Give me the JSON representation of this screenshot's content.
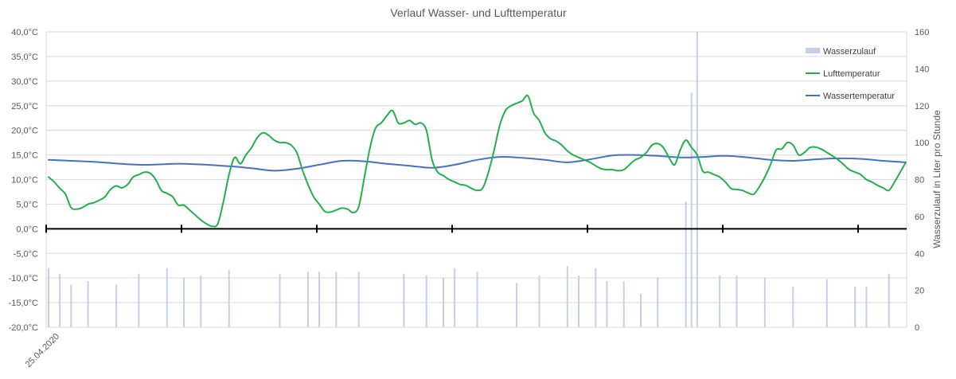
{
  "chart_data": {
    "type": "line",
    "title": "Verlauf Wasser- und Lufttemperatur",
    "x_start_label": "25.04.2020",
    "x_count": 152,
    "y_left": {
      "range": [
        -20,
        40
      ],
      "ticks": [
        -20,
        -15,
        -10,
        -5,
        0,
        5,
        10,
        15,
        20,
        25,
        30,
        35,
        40
      ],
      "tick_labels": [
        "-20,0°C",
        "-15,0°C",
        "-10,0°C",
        "-5,0°C",
        "0,0°C",
        "5,0°C",
        "10,0°C",
        "15,0°C",
        "20,0°C",
        "25,0°C",
        "30,0°C",
        "35,0°C",
        "40,0°C"
      ]
    },
    "y_right": {
      "label": "Wasserzulauf in Liter pro Stunde",
      "range": [
        0,
        160
      ],
      "ticks": [
        0,
        20,
        40,
        60,
        80,
        100,
        120,
        140,
        160
      ],
      "tick_labels": [
        "0",
        "20",
        "40",
        "60",
        "80",
        "100",
        "120",
        "140",
        "160"
      ]
    },
    "grid": true,
    "legend_position": "top-right",
    "colors": {
      "Wasserzulauf": "#c5d0e3",
      "Lufttemperatur": "#21b14b",
      "Wassertemperatur": "#4472c4",
      "zero_axis": "#000000"
    },
    "series": [
      {
        "name": "Wasserzulauf",
        "type": "bar",
        "axis": "right",
        "points": [
          [
            0,
            32
          ],
          [
            2,
            29
          ],
          [
            4,
            23
          ],
          [
            7,
            25
          ],
          [
            12,
            23
          ],
          [
            16,
            29
          ],
          [
            21,
            32
          ],
          [
            24,
            27
          ],
          [
            27,
            28
          ],
          [
            32,
            31
          ],
          [
            41,
            29
          ],
          [
            46,
            30
          ],
          [
            48,
            30
          ],
          [
            51,
            30
          ],
          [
            55,
            30
          ],
          [
            63,
            29
          ],
          [
            67,
            28
          ],
          [
            70,
            27
          ],
          [
            72,
            32
          ],
          [
            76,
            30
          ],
          [
            83,
            24
          ],
          [
            87,
            28
          ],
          [
            92,
            33
          ],
          [
            94,
            28
          ],
          [
            97,
            32
          ],
          [
            99,
            25
          ],
          [
            102,
            25
          ],
          [
            105,
            18
          ],
          [
            108,
            27
          ],
          [
            113,
            68
          ],
          [
            114,
            127
          ],
          [
            115,
            160
          ],
          [
            119,
            28
          ],
          [
            122,
            28
          ],
          [
            127,
            27
          ],
          [
            132,
            22
          ],
          [
            138,
            26
          ],
          [
            143,
            22
          ],
          [
            145,
            22
          ],
          [
            149,
            29
          ]
        ]
      },
      {
        "name": "Lufttemperatur",
        "type": "line",
        "axis": "left",
        "points": [
          [
            0,
            10.5
          ],
          [
            1,
            9.5
          ],
          [
            2,
            8.2
          ],
          [
            3,
            7.0
          ],
          [
            4,
            4.3
          ],
          [
            5,
            4.0
          ],
          [
            6,
            4.3
          ],
          [
            7,
            5.0
          ],
          [
            8,
            5.3
          ],
          [
            9,
            5.8
          ],
          [
            10,
            6.5
          ],
          [
            11,
            8.0
          ],
          [
            12,
            8.7
          ],
          [
            13,
            8.3
          ],
          [
            14,
            9.0
          ],
          [
            15,
            10.5
          ],
          [
            16,
            11.0
          ],
          [
            17,
            11.5
          ],
          [
            18,
            11.3
          ],
          [
            19,
            10.0
          ],
          [
            20,
            7.8
          ],
          [
            21,
            7.2
          ],
          [
            22,
            6.5
          ],
          [
            23,
            4.8
          ],
          [
            24,
            4.8
          ],
          [
            25,
            3.8
          ],
          [
            26,
            2.8
          ],
          [
            27,
            1.8
          ],
          [
            28,
            1.0
          ],
          [
            29,
            0.5
          ],
          [
            30,
            1.0
          ],
          [
            31,
            5.5
          ],
          [
            32,
            11.0
          ],
          [
            33,
            14.5
          ],
          [
            34,
            13.2
          ],
          [
            35,
            15.0
          ],
          [
            36,
            16.5
          ],
          [
            37,
            18.5
          ],
          [
            38,
            19.5
          ],
          [
            39,
            19.0
          ],
          [
            40,
            18.0
          ],
          [
            41,
            17.5
          ],
          [
            42,
            17.5
          ],
          [
            43,
            17.0
          ],
          [
            44,
            15.5
          ],
          [
            45,
            12.0
          ],
          [
            46,
            9.0
          ],
          [
            47,
            6.5
          ],
          [
            48,
            5.0
          ],
          [
            49,
            3.5
          ],
          [
            50,
            3.4
          ],
          [
            51,
            3.8
          ],
          [
            52,
            4.2
          ],
          [
            53,
            4.0
          ],
          [
            54,
            3.3
          ],
          [
            55,
            4.5
          ],
          [
            56,
            10.5
          ],
          [
            57,
            16.5
          ],
          [
            58,
            20.5
          ],
          [
            59,
            21.5
          ],
          [
            60,
            23.0
          ],
          [
            61,
            24.0
          ],
          [
            62,
            21.5
          ],
          [
            63,
            21.5
          ],
          [
            64,
            22.0
          ],
          [
            65,
            21.2
          ],
          [
            66,
            21.5
          ],
          [
            67,
            20.0
          ],
          [
            68,
            14.0
          ],
          [
            69,
            11.5
          ],
          [
            70,
            10.8
          ],
          [
            71,
            10.0
          ],
          [
            72,
            9.5
          ],
          [
            73,
            9.0
          ],
          [
            74,
            8.8
          ],
          [
            75,
            8.2
          ],
          [
            76,
            7.8
          ],
          [
            77,
            8.3
          ],
          [
            78,
            11.5
          ],
          [
            79,
            16.0
          ],
          [
            80,
            21.0
          ],
          [
            81,
            24.0
          ],
          [
            82,
            25.0
          ],
          [
            83,
            25.5
          ],
          [
            84,
            26.0
          ],
          [
            85,
            27.0
          ],
          [
            86,
            23.5
          ],
          [
            87,
            22.0
          ],
          [
            88,
            19.5
          ],
          [
            89,
            18.3
          ],
          [
            90,
            17.8
          ],
          [
            91,
            17.0
          ],
          [
            92,
            15.8
          ],
          [
            93,
            15.0
          ],
          [
            94,
            14.5
          ],
          [
            95,
            14.0
          ],
          [
            96,
            13.5
          ],
          [
            97,
            12.8
          ],
          [
            98,
            12.2
          ],
          [
            99,
            12.0
          ],
          [
            100,
            12.0
          ],
          [
            101,
            11.8
          ],
          [
            102,
            12.0
          ],
          [
            103,
            13.0
          ],
          [
            104,
            14.0
          ],
          [
            105,
            14.5
          ],
          [
            106,
            15.5
          ],
          [
            107,
            17.0
          ],
          [
            108,
            17.3
          ],
          [
            109,
            16.5
          ],
          [
            110,
            14.5
          ],
          [
            111,
            13.0
          ],
          [
            112,
            16.0
          ],
          [
            113,
            18.0
          ],
          [
            114,
            16.5
          ],
          [
            115,
            15.0
          ],
          [
            116,
            11.7
          ],
          [
            117,
            11.5
          ],
          [
            118,
            11.0
          ],
          [
            119,
            10.5
          ],
          [
            120,
            9.5
          ],
          [
            121,
            8.2
          ],
          [
            122,
            8.0
          ],
          [
            123,
            7.8
          ],
          [
            124,
            7.3
          ],
          [
            125,
            7.0
          ],
          [
            126,
            8.5
          ],
          [
            127,
            10.5
          ],
          [
            128,
            13.0
          ],
          [
            129,
            16.0
          ],
          [
            130,
            16.2
          ],
          [
            131,
            17.5
          ],
          [
            132,
            17.0
          ],
          [
            133,
            15.0
          ],
          [
            134,
            15.5
          ],
          [
            135,
            16.5
          ],
          [
            136,
            16.6
          ],
          [
            137,
            16.2
          ],
          [
            138,
            15.5
          ],
          [
            139,
            14.8
          ],
          [
            140,
            14.0
          ],
          [
            141,
            13.0
          ],
          [
            142,
            12.0
          ],
          [
            143,
            11.5
          ],
          [
            144,
            11.0
          ],
          [
            145,
            10.0
          ],
          [
            146,
            9.5
          ],
          [
            147,
            8.8
          ],
          [
            148,
            8.3
          ],
          [
            149,
            7.8
          ],
          [
            150,
            9.5
          ],
          [
            151,
            11.5
          ],
          [
            152,
            13.5
          ]
        ]
      },
      {
        "name": "Wassertemperatur",
        "type": "line",
        "axis": "left",
        "points": [
          [
            0,
            14.0
          ],
          [
            8,
            13.6
          ],
          [
            16,
            13.0
          ],
          [
            24,
            13.2
          ],
          [
            32,
            12.7
          ],
          [
            36,
            12.3
          ],
          [
            40,
            11.8
          ],
          [
            44,
            12.2
          ],
          [
            48,
            13.0
          ],
          [
            52,
            13.8
          ],
          [
            56,
            13.7
          ],
          [
            60,
            13.2
          ],
          [
            64,
            12.8
          ],
          [
            68,
            12.4
          ],
          [
            72,
            13.0
          ],
          [
            76,
            14.0
          ],
          [
            80,
            14.6
          ],
          [
            84,
            14.4
          ],
          [
            88,
            14.0
          ],
          [
            92,
            13.5
          ],
          [
            96,
            14.1
          ],
          [
            100,
            14.9
          ],
          [
            104,
            15.0
          ],
          [
            108,
            14.8
          ],
          [
            112,
            14.5
          ],
          [
            116,
            14.6
          ],
          [
            120,
            14.8
          ],
          [
            124,
            14.5
          ],
          [
            128,
            14.0
          ],
          [
            132,
            13.8
          ],
          [
            136,
            14.1
          ],
          [
            140,
            14.3
          ],
          [
            144,
            14.2
          ],
          [
            148,
            13.8
          ],
          [
            152,
            13.5
          ]
        ]
      }
    ]
  }
}
